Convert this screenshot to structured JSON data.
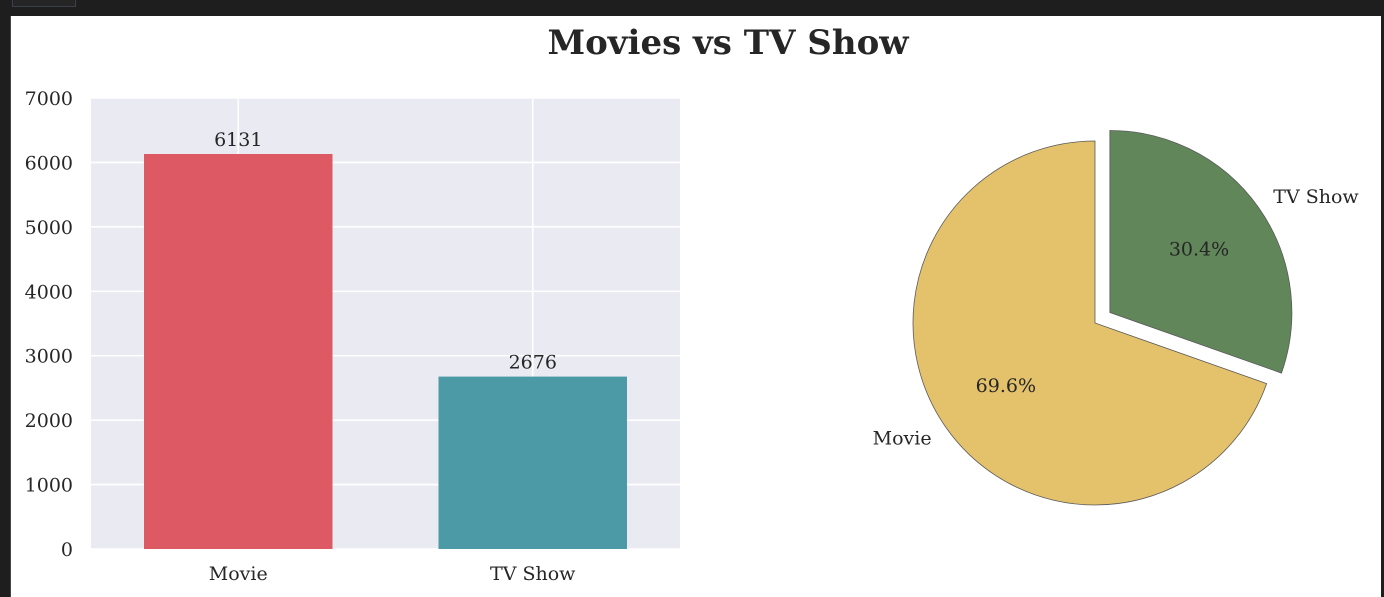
{
  "figure": {
    "title": "Movies vs TV Show"
  },
  "colors": {
    "background": "#1e1e1e",
    "plot_bg": "#eaeaf2",
    "grid": "#ffffff",
    "bar_movie": "#dd5a64",
    "bar_tv": "#4b9aa6",
    "pie_movie": "#e4c16b",
    "pie_tv": "#608659"
  },
  "chart_data": [
    {
      "type": "bar",
      "categories": [
        "Movie",
        "TV Show"
      ],
      "values": [
        6131,
        2676
      ],
      "data_labels": [
        "6131",
        "2676"
      ],
      "ylim": [
        0,
        7000
      ],
      "yticks": [
        "0",
        "1000",
        "2000",
        "3000",
        "4000",
        "5000",
        "6000",
        "7000"
      ],
      "xlabel": "",
      "ylabel": "",
      "grid": true
    },
    {
      "type": "pie",
      "labels": [
        "Movie",
        "TV Show"
      ],
      "values": [
        69.6,
        30.4
      ],
      "pct_labels": [
        "69.6%",
        "30.4%"
      ],
      "explode": [
        0,
        0.1
      ]
    }
  ]
}
